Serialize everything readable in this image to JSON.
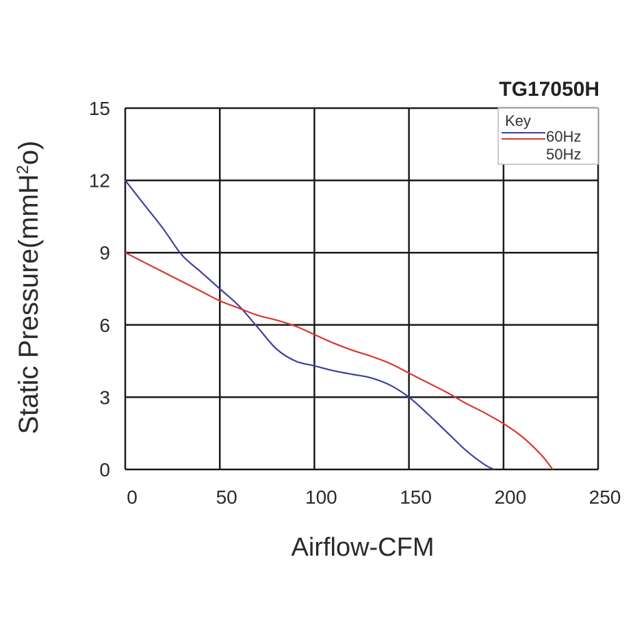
{
  "chart_data": {
    "type": "line",
    "title": "TG17050H",
    "xlabel": "Airflow-CFM",
    "ylabel_main": "Static Pressure(mmH",
    "ylabel_sup": "2",
    "ylabel_tail": "o)",
    "xlim": [
      0,
      250
    ],
    "ylim": [
      0,
      15
    ],
    "x_ticks": [
      0,
      50,
      100,
      150,
      200,
      250
    ],
    "y_ticks": [
      0,
      3,
      6,
      9,
      12,
      15
    ],
    "grid": true,
    "legend_title": "Key",
    "legend_position": "top-right",
    "series": [
      {
        "name": "60Hz",
        "color": "#3b3fa0",
        "points": [
          [
            0,
            12
          ],
          [
            10,
            11.0
          ],
          [
            20,
            10.0
          ],
          [
            30,
            8.9
          ],
          [
            40,
            8.2
          ],
          [
            50,
            7.5
          ],
          [
            60,
            6.8
          ],
          [
            70,
            5.9
          ],
          [
            80,
            5.0
          ],
          [
            90,
            4.5
          ],
          [
            100,
            4.3
          ],
          [
            110,
            4.1
          ],
          [
            120,
            3.95
          ],
          [
            130,
            3.8
          ],
          [
            140,
            3.5
          ],
          [
            150,
            3.0
          ],
          [
            160,
            2.3
          ],
          [
            170,
            1.55
          ],
          [
            180,
            0.8
          ],
          [
            190,
            0.2
          ],
          [
            195,
            0
          ]
        ]
      },
      {
        "name": "50Hz",
        "color": "#d8362f",
        "points": [
          [
            0,
            9
          ],
          [
            10,
            8.6
          ],
          [
            20,
            8.2
          ],
          [
            30,
            7.8
          ],
          [
            40,
            7.4
          ],
          [
            50,
            7.0
          ],
          [
            60,
            6.7
          ],
          [
            70,
            6.4
          ],
          [
            80,
            6.2
          ],
          [
            90,
            5.95
          ],
          [
            100,
            5.6
          ],
          [
            110,
            5.25
          ],
          [
            120,
            4.95
          ],
          [
            130,
            4.7
          ],
          [
            140,
            4.4
          ],
          [
            150,
            4.0
          ],
          [
            160,
            3.6
          ],
          [
            170,
            3.2
          ],
          [
            180,
            2.75
          ],
          [
            190,
            2.35
          ],
          [
            200,
            1.9
          ],
          [
            210,
            1.35
          ],
          [
            220,
            0.6
          ],
          [
            226,
            0
          ]
        ]
      }
    ]
  }
}
